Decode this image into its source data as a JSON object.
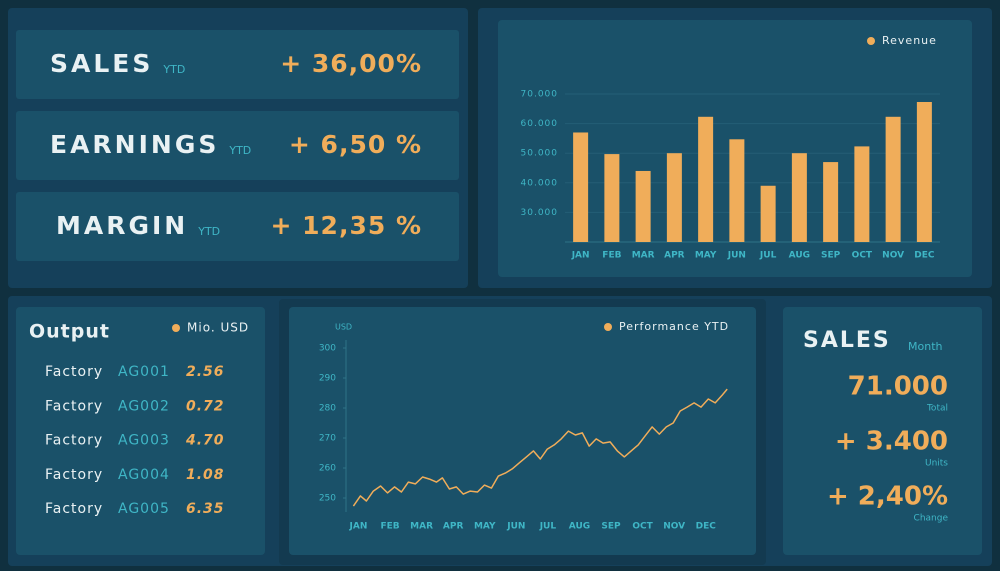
{
  "kpis": [
    {
      "label": "SALES",
      "suffix": "YTD",
      "value": "+ 36,00%"
    },
    {
      "label": "EARNINGS",
      "suffix": "YTD",
      "value": "+ 6,50 %"
    },
    {
      "label": "MARGIN",
      "suffix": "YTD",
      "value": "+ 12,35 %"
    }
  ],
  "revenue_chart": {
    "type": "bar",
    "legend": "Revenue",
    "color": "#f0ad5a",
    "categories": [
      "JAN",
      "FEB",
      "MAR",
      "APR",
      "MAY",
      "JUN",
      "JUL",
      "AUG",
      "SEP",
      "OCT",
      "NOV",
      "DEC"
    ],
    "values": [
      57000,
      49700,
      44000,
      50000,
      62300,
      54700,
      39000,
      50000,
      47000,
      52300,
      62300,
      67300
    ],
    "ylim": [
      20000,
      70000
    ],
    "yticks": [
      {
        "value": 30000,
        "label": "30.000"
      },
      {
        "value": 40000,
        "label": "40.000"
      },
      {
        "value": 50000,
        "label": "50.000"
      },
      {
        "value": 60000,
        "label": "60.000"
      },
      {
        "value": 70000,
        "label": "70.000"
      }
    ],
    "grid": true
  },
  "output": {
    "title": "Output",
    "legend": "Mio. USD",
    "rows": [
      {
        "name": "Factory",
        "code": "AG001",
        "value": "2.56"
      },
      {
        "name": "Factory",
        "code": "AG002",
        "value": "0.72"
      },
      {
        "name": "Factory",
        "code": "AG003",
        "value": "4.70"
      },
      {
        "name": "Factory",
        "code": "AG004",
        "value": "1.08"
      },
      {
        "name": "Factory",
        "code": "AG005",
        "value": "6.35"
      }
    ]
  },
  "performance_chart": {
    "type": "line",
    "y_label": "USD",
    "series": [
      {
        "name": "Performance YTD",
        "color": "#f0ad5a",
        "x": [
          -0.16,
          0.06,
          0.25,
          0.47,
          0.7,
          0.92,
          1.14,
          1.36,
          1.58,
          1.8,
          2.03,
          2.25,
          2.47,
          2.66,
          2.88,
          3.1,
          3.32,
          3.54,
          3.77,
          3.99,
          4.21,
          4.43,
          4.65,
          4.87,
          5.09,
          5.32,
          5.54,
          5.76,
          5.98,
          6.2,
          6.42,
          6.65,
          6.87,
          7.09,
          7.31,
          7.53,
          7.75,
          7.97,
          8.2,
          8.42,
          8.64,
          8.86,
          9.08,
          9.3,
          9.53,
          9.75,
          9.97,
          10.19,
          10.41,
          10.63,
          10.85,
          11.08,
          11.3,
          11.52,
          11.68
        ],
        "values": [
          247.3,
          250.7,
          249,
          252.3,
          254,
          251.7,
          253.7,
          252,
          255.3,
          254.7,
          257,
          256.3,
          255.3,
          256.7,
          253,
          253.7,
          251.3,
          252.3,
          252,
          254.3,
          253.3,
          257.3,
          258.3,
          259.7,
          261.7,
          263.7,
          265.7,
          263,
          266.3,
          267.7,
          269.7,
          272.3,
          271,
          271.7,
          267.3,
          269.7,
          268.3,
          268.7,
          265.7,
          263.7,
          265.7,
          267.7,
          270.7,
          273.7,
          271.3,
          273.7,
          275,
          279,
          280.3,
          281.7,
          280.3,
          283,
          281.7,
          284.3,
          286.3
        ]
      }
    ],
    "xlim": [
      -0.3,
      11.8
    ],
    "xticks": [
      {
        "value": 0,
        "label": "JAN"
      },
      {
        "value": 1,
        "label": "FEB"
      },
      {
        "value": 2,
        "label": "MAR"
      },
      {
        "value": 3,
        "label": "APR"
      },
      {
        "value": 4,
        "label": "MAY"
      },
      {
        "value": 5,
        "label": "JUN"
      },
      {
        "value": 6,
        "label": "JUL"
      },
      {
        "value": 7,
        "label": "AUG"
      },
      {
        "value": 8,
        "label": "SEP"
      },
      {
        "value": 9,
        "label": "OCT"
      },
      {
        "value": 10,
        "label": "NOV"
      },
      {
        "value": 11,
        "label": "DEC"
      }
    ],
    "ylim": [
      245,
      303
    ],
    "yticks": [
      250,
      260,
      270,
      280,
      290,
      300
    ]
  },
  "sales_month": {
    "title": "SALES",
    "subtitle": "Month",
    "items": [
      {
        "value": "71.000",
        "label": "Total"
      },
      {
        "value": "+ 3.400",
        "label": "Units"
      },
      {
        "value": "+ 2,40%",
        "label": "Change"
      }
    ]
  }
}
